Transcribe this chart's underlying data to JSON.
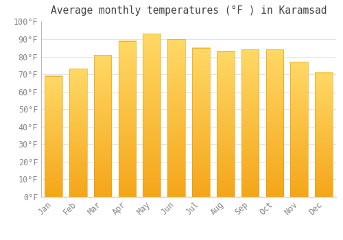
{
  "title": "Average monthly temperatures (°F ) in Karamsad",
  "months": [
    "Jan",
    "Feb",
    "Mar",
    "Apr",
    "May",
    "Jun",
    "Jul",
    "Aug",
    "Sep",
    "Oct",
    "Nov",
    "Dec"
  ],
  "values": [
    69,
    73,
    81,
    89,
    93,
    90,
    85,
    83,
    84,
    84,
    77,
    71
  ],
  "bar_color_top": "#F5A800",
  "bar_color_bottom": "#FFD966",
  "background_color": "#FFFFFF",
  "grid_color": "#DDDDDD",
  "ylim": [
    0,
    100
  ],
  "ytick_step": 10,
  "title_fontsize": 10.5,
  "tick_fontsize": 8.5
}
